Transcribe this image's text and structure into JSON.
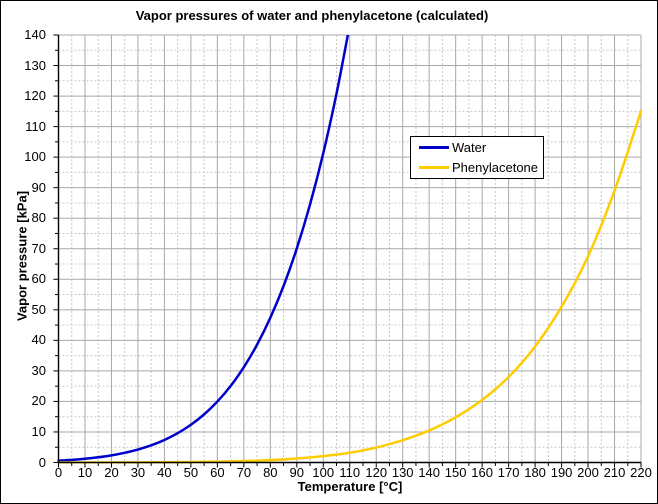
{
  "window": {
    "background": "#ffffff",
    "border_color": "#000000"
  },
  "chart_data": {
    "type": "line",
    "title": "Vapor pressures of water and phenylacetone (calculated)",
    "xlabel": "Temperature [°C]",
    "ylabel": "Vapor pressure [kPa]",
    "xlim": [
      0,
      220
    ],
    "ylim": [
      0,
      140
    ],
    "x_tick_step": 10,
    "x_minor_step": 5,
    "y_tick_step": 10,
    "y_minor_step": 5,
    "grid": {
      "major": true,
      "minor": true,
      "major_color": "#a8a8a8",
      "minor_color": "#c9c9c9",
      "minor_style": "dashed"
    },
    "axis_color": "#000000",
    "legend": {
      "position": "inside-top-center",
      "background": "#ffffff",
      "border_color": "#000000"
    },
    "series": [
      {
        "name": "Water",
        "color": "#0000cc",
        "x": [
          0,
          5,
          10,
          15,
          20,
          25,
          30,
          35,
          40,
          45,
          50,
          55,
          60,
          65,
          70,
          75,
          80,
          85,
          90,
          95,
          100,
          105,
          110
        ],
        "y": [
          0.61,
          0.87,
          1.23,
          1.71,
          2.34,
          3.17,
          4.25,
          5.63,
          7.38,
          9.59,
          12.35,
          15.76,
          19.95,
          25.04,
          31.2,
          38.6,
          47.4,
          57.8,
          70.1,
          84.5,
          101.3,
          120.8,
          143.3
        ]
      },
      {
        "name": "Phenylacetone",
        "color": "#ffcc00",
        "x": [
          0,
          10,
          20,
          30,
          40,
          50,
          60,
          70,
          80,
          90,
          100,
          110,
          120,
          130,
          140,
          150,
          160,
          170,
          180,
          190,
          200,
          210,
          220
        ],
        "y": [
          0.0,
          0.01,
          0.02,
          0.04,
          0.08,
          0.15,
          0.27,
          0.46,
          0.78,
          1.3,
          2.1,
          3.2,
          4.9,
          7.3,
          10.5,
          14.8,
          20.5,
          28.0,
          38.0,
          51.0,
          67.5,
          89.0,
          115.0
        ]
      }
    ]
  }
}
